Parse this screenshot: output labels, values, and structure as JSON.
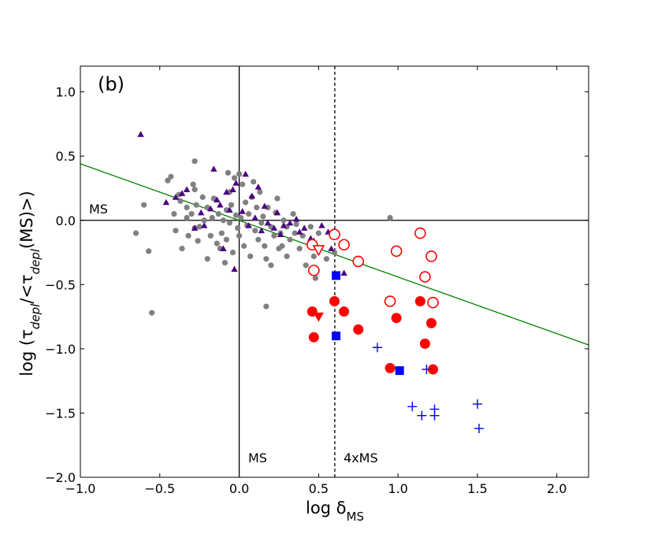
{
  "chart_data": {
    "type": "scatter",
    "panel_label": "(b)",
    "xlabel": "log δMS",
    "ylabel": "log (τdepl/<τdepl(MS)>)",
    "xlim": [
      -1.0,
      2.2
    ],
    "ylim": [
      -2.0,
      1.2
    ],
    "x_ticks": [
      -1.0,
      -0.5,
      0.0,
      0.5,
      1.0,
      1.5,
      2.0
    ],
    "x_tick_labels": [
      "−1.0",
      "−0.5",
      "0.0",
      "0.5",
      "1.0",
      "1.5",
      "2.0"
    ],
    "y_ticks": [
      1.0,
      0.5,
      0.0,
      -0.5,
      -1.0,
      -1.5,
      -2.0
    ],
    "y_tick_labels": [
      "1.0",
      "0.5",
      "0.0",
      "−0.5",
      "−1.0",
      "−1.5",
      "−2.0"
    ],
    "reference_lines": [
      {
        "orientation": "vertical",
        "value": 0.0,
        "style": "solid",
        "label": "MS"
      },
      {
        "orientation": "vertical",
        "value": 0.602,
        "style": "dashed",
        "label": "4xMS"
      },
      {
        "orientation": "horizontal",
        "value": 0.0,
        "style": "solid",
        "label": "MS"
      }
    ],
    "fit_line": {
      "x": [
        -1.0,
        2.2
      ],
      "y": [
        0.44,
        -0.97
      ],
      "color": "#008000"
    },
    "series": [
      {
        "name": "gray circles",
        "marker": "circle",
        "color": "#808080",
        "points": [
          [
            -0.65,
            -0.1
          ],
          [
            -0.6,
            0.12
          ],
          [
            -0.57,
            -0.24
          ],
          [
            -0.55,
            -0.72
          ],
          [
            -0.45,
            0.31
          ],
          [
            -0.43,
            0.34
          ],
          [
            -0.41,
            0.05
          ],
          [
            -0.4,
            -0.08
          ],
          [
            -0.38,
            0.2
          ],
          [
            -0.37,
            0.15
          ],
          [
            -0.36,
            -0.22
          ],
          [
            -0.33,
            0.1
          ],
          [
            -0.33,
            0.02
          ],
          [
            -0.32,
            -0.12
          ],
          [
            -0.3,
            0.05
          ],
          [
            -0.29,
            0.28
          ],
          [
            -0.28,
            0.24
          ],
          [
            -0.28,
            -0.06
          ],
          [
            -0.27,
            0.12
          ],
          [
            -0.26,
            -0.16
          ],
          [
            -0.25,
            -0.05
          ],
          [
            -0.23,
            0.18
          ],
          [
            -0.22,
            0.0
          ],
          [
            -0.2,
            0.1
          ],
          [
            -0.2,
            -0.3
          ],
          [
            -0.28,
            0.46
          ],
          [
            -0.18,
            -0.12
          ],
          [
            -0.17,
            0.02
          ],
          [
            -0.16,
            0.17
          ],
          [
            -0.14,
            -0.18
          ],
          [
            -0.13,
            0.05
          ],
          [
            -0.12,
            -0.22
          ],
          [
            -0.11,
            -0.1
          ],
          [
            -0.1,
            0.0
          ],
          [
            -0.09,
            -0.33
          ],
          [
            -0.08,
            0.08
          ],
          [
            -0.08,
            -0.15
          ],
          [
            -0.07,
            0.37
          ],
          [
            -0.06,
            0.22
          ],
          [
            -0.06,
            -0.02
          ],
          [
            -0.05,
            0.12
          ],
          [
            -0.04,
            -0.25
          ],
          [
            -0.03,
            0.33
          ],
          [
            -0.02,
            0.04
          ],
          [
            -0.01,
            -0.06
          ],
          [
            0.0,
            -0.12
          ],
          [
            0.0,
            0.36
          ],
          [
            0.01,
            0.02
          ],
          [
            0.02,
            0.28
          ],
          [
            0.03,
            -0.2
          ],
          [
            0.04,
            0.14
          ],
          [
            0.05,
            -0.04
          ],
          [
            0.06,
            0.05
          ],
          [
            0.07,
            -0.28
          ],
          [
            0.08,
            0.18
          ],
          [
            0.09,
            0.3
          ],
          [
            0.1,
            -0.08
          ],
          [
            0.11,
            0.1
          ],
          [
            0.12,
            -0.15
          ],
          [
            0.13,
            0.22
          ],
          [
            0.14,
            -0.02
          ],
          [
            0.15,
            0.03
          ],
          [
            0.16,
            -0.2
          ],
          [
            0.17,
            -0.3
          ],
          [
            0.18,
            0.1
          ],
          [
            0.2,
            -0.05
          ],
          [
            0.2,
            -0.35
          ],
          [
            0.22,
            -0.12
          ],
          [
            0.23,
            0.06
          ],
          [
            0.24,
            0.17
          ],
          [
            0.25,
            -0.22
          ],
          [
            0.26,
            -0.1
          ],
          [
            0.27,
            -0.2
          ],
          [
            0.28,
            0.0
          ],
          [
            0.3,
            -0.05
          ],
          [
            0.3,
            -0.28
          ],
          [
            0.32,
            -0.15
          ],
          [
            0.34,
            0.05
          ],
          [
            0.35,
            -0.1
          ],
          [
            0.36,
            -0.03
          ],
          [
            0.38,
            -0.22
          ],
          [
            0.4,
            -0.12
          ],
          [
            0.42,
            -0.35
          ],
          [
            0.45,
            -0.05
          ],
          [
            0.47,
            -0.28
          ],
          [
            0.48,
            -0.45
          ],
          [
            0.5,
            -0.1
          ],
          [
            0.55,
            -0.3
          ],
          [
            0.6,
            -0.25
          ],
          [
            0.17,
            -0.67
          ],
          [
            0.95,
            0.02
          ]
        ]
      },
      {
        "name": "purple triangles",
        "marker": "triangle-up",
        "color": "#4b0082",
        "points": [
          [
            -0.62,
            0.67
          ],
          [
            -0.46,
            0.14
          ],
          [
            -0.4,
            0.18
          ],
          [
            -0.36,
            0.21
          ],
          [
            -0.33,
            0.24
          ],
          [
            -0.28,
            -0.06
          ],
          [
            -0.24,
            0.06
          ],
          [
            -0.22,
            -0.04
          ],
          [
            -0.18,
            0.09
          ],
          [
            -0.16,
            0.4
          ],
          [
            -0.14,
            0.16
          ],
          [
            -0.12,
            0.12
          ],
          [
            -0.1,
            -0.22
          ],
          [
            -0.08,
            0.22
          ],
          [
            -0.06,
            0.08
          ],
          [
            -0.04,
            0.24
          ],
          [
            -0.03,
            -0.38
          ],
          [
            -0.02,
            0.29
          ],
          [
            0.02,
            0.07
          ],
          [
            0.04,
            0.36
          ],
          [
            0.06,
            -0.04
          ],
          [
            0.08,
            0.19
          ],
          [
            0.1,
            0.02
          ],
          [
            0.12,
            0.26
          ],
          [
            0.14,
            -0.08
          ],
          [
            0.16,
            0.11
          ],
          [
            0.18,
            -0.02
          ],
          [
            0.22,
            -0.06
          ],
          [
            0.24,
            0.06
          ],
          [
            0.26,
            -0.11
          ],
          [
            0.28,
            -0.04
          ],
          [
            0.32,
            -0.02
          ],
          [
            0.36,
            0.01
          ],
          [
            0.38,
            -0.09
          ],
          [
            0.41,
            -0.06
          ],
          [
            0.45,
            -0.14
          ],
          [
            0.47,
            -0.16
          ],
          [
            0.52,
            -0.04
          ],
          [
            0.56,
            -0.09
          ],
          [
            0.58,
            -0.22
          ],
          [
            0.66,
            -0.41
          ]
        ]
      },
      {
        "name": "red open circles",
        "marker": "circle-open",
        "color": "#ff0000",
        "points": [
          [
            0.46,
            -0.19
          ],
          [
            0.47,
            -0.39
          ],
          [
            0.6,
            -0.11
          ],
          [
            0.66,
            -0.19
          ],
          [
            0.75,
            -0.32
          ],
          [
            0.95,
            -0.63
          ],
          [
            0.99,
            -0.24
          ],
          [
            1.14,
            -0.1
          ],
          [
            1.17,
            -0.44
          ],
          [
            1.21,
            -0.28
          ],
          [
            1.22,
            -0.64
          ]
        ]
      },
      {
        "name": "red filled circles",
        "marker": "circle",
        "color": "#ff0000",
        "points": [
          [
            0.46,
            -0.71
          ],
          [
            0.47,
            -0.91
          ],
          [
            0.6,
            -0.63
          ],
          [
            0.66,
            -0.71
          ],
          [
            0.75,
            -0.85
          ],
          [
            0.95,
            -1.15
          ],
          [
            0.99,
            -0.76
          ],
          [
            1.14,
            -0.63
          ],
          [
            1.17,
            -0.96
          ],
          [
            1.21,
            -0.8
          ],
          [
            1.22,
            -1.16
          ]
        ]
      },
      {
        "name": "red open triangle down",
        "marker": "triangle-down-open",
        "color": "#ff0000",
        "points": [
          [
            0.5,
            -0.23
          ]
        ]
      },
      {
        "name": "red filled triangle down",
        "marker": "triangle-down",
        "color": "#ff0000",
        "points": [
          [
            0.5,
            -0.75
          ]
        ]
      },
      {
        "name": "blue squares",
        "marker": "square",
        "color": "#0000ff",
        "points": [
          [
            0.61,
            -0.43
          ],
          [
            0.61,
            -0.9
          ],
          [
            1.01,
            -1.17
          ]
        ]
      },
      {
        "name": "blue crosses",
        "marker": "plus",
        "color": "#0000ff",
        "points": [
          [
            0.87,
            -0.99
          ],
          [
            1.09,
            -1.45
          ],
          [
            1.15,
            -1.52
          ],
          [
            1.18,
            -1.16
          ],
          [
            1.23,
            -1.47
          ],
          [
            1.23,
            -1.52
          ],
          [
            1.5,
            -1.43
          ],
          [
            1.51,
            -1.62
          ]
        ]
      }
    ]
  }
}
